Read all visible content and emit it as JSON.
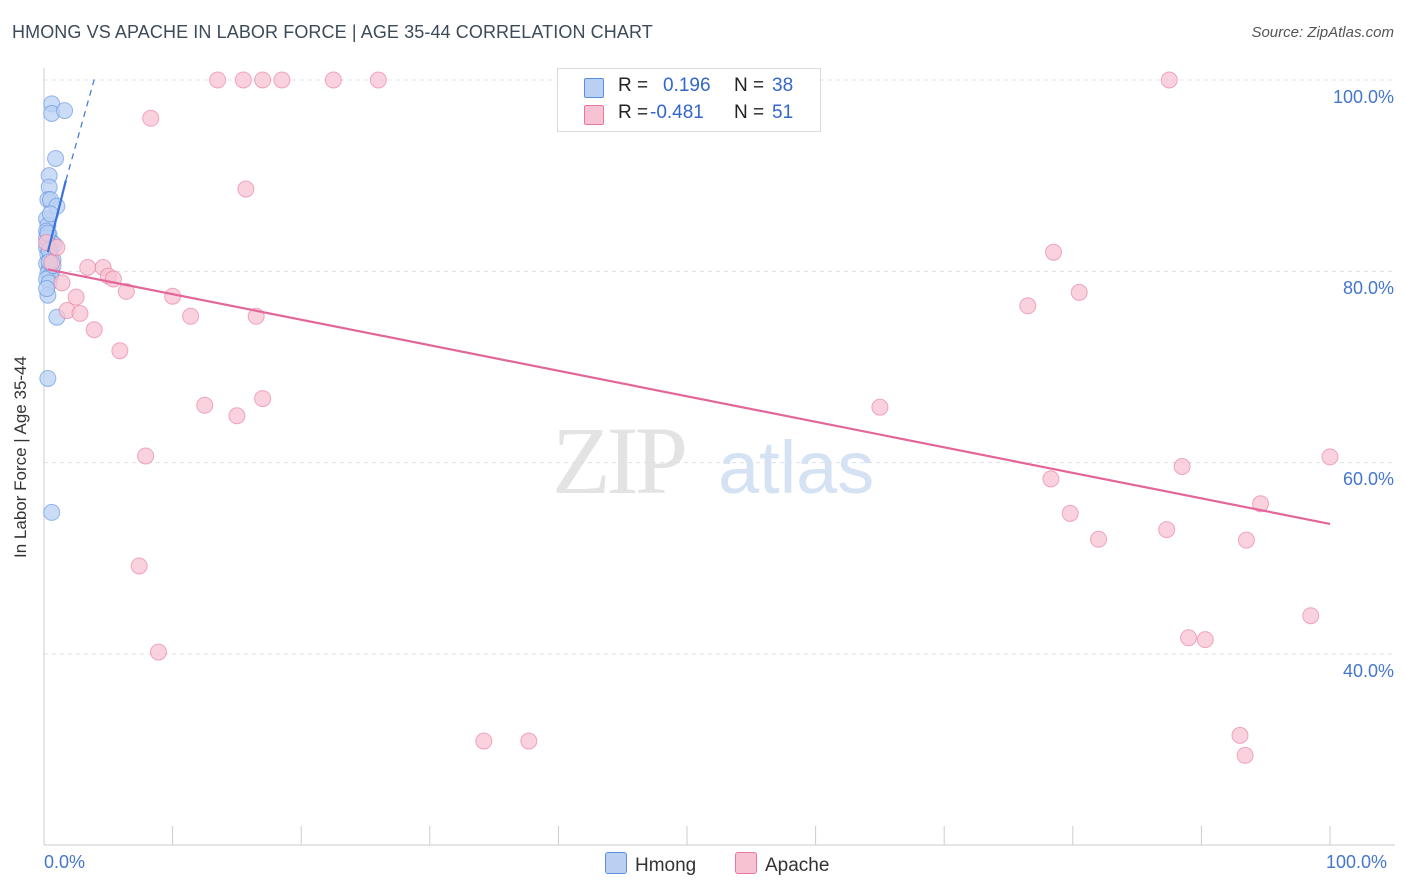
{
  "title": "HMONG VS APACHE IN LABOR FORCE | AGE 35-44 CORRELATION CHART",
  "source": "Source: ZipAtlas.com",
  "watermark": {
    "zip": "ZIP",
    "atlas": "atlas"
  },
  "colors": {
    "hmong": "#5b8fe0",
    "hmong_fill": "#b9d0f3",
    "apache": "#e8769d",
    "apache_fill": "#f7c3d3",
    "axis_text": "#4477cc"
  },
  "legend": {
    "hmong": {
      "r_label": "R =",
      "r_value": "0.196",
      "n_label": "N =",
      "n_value": "38"
    },
    "apache": {
      "r_label": "R =",
      "r_value": "-0.481",
      "n_label": "N =",
      "n_value": "51"
    }
  },
  "bottom_legend": {
    "hmong": "Hmong",
    "apache": "Apache"
  },
  "chart_data": {
    "type": "scatter",
    "title": "HMONG VS APACHE IN LABOR FORCE | AGE 35-44 CORRELATION CHART",
    "xlabel": "",
    "ylabel": "In Labor Force | Age 35-44",
    "x_tick_labels": [
      "0.0%",
      "100.0%"
    ],
    "y_tick_labels": [
      "40.0%",
      "60.0%",
      "80.0%",
      "100.0%"
    ],
    "xlim": [
      0,
      100
    ],
    "ylim": [
      20,
      102
    ],
    "y_gridlines": [
      40,
      60,
      80,
      100
    ],
    "legend_position": "top-center",
    "series": [
      {
        "name": "Hmong",
        "points": [
          [
            0.6,
            97.5
          ],
          [
            0.6,
            96.5
          ],
          [
            1.6,
            96.8
          ],
          [
            0.9,
            91.8
          ],
          [
            0.4,
            90.0
          ],
          [
            0.4,
            88.8
          ],
          [
            0.3,
            87.5
          ],
          [
            0.5,
            87.5
          ],
          [
            1.0,
            86.8
          ],
          [
            0.2,
            85.5
          ],
          [
            0.3,
            84.8
          ],
          [
            0.2,
            84.2
          ],
          [
            0.4,
            83.8
          ],
          [
            0.3,
            83.2
          ],
          [
            0.6,
            83.0
          ],
          [
            0.8,
            82.8
          ],
          [
            0.2,
            82.5
          ],
          [
            0.3,
            81.8
          ],
          [
            0.5,
            81.5
          ],
          [
            0.7,
            81.2
          ],
          [
            0.2,
            80.8
          ],
          [
            0.4,
            80.2
          ],
          [
            0.6,
            80.0
          ],
          [
            0.3,
            79.8
          ],
          [
            0.5,
            79.5
          ],
          [
            0.2,
            79.2
          ],
          [
            0.4,
            78.8
          ],
          [
            0.3,
            77.5
          ],
          [
            1.0,
            75.2
          ],
          [
            0.3,
            68.8
          ],
          [
            0.6,
            54.8
          ],
          [
            0.2,
            83.5
          ],
          [
            0.4,
            82.2
          ],
          [
            0.7,
            80.6
          ],
          [
            0.3,
            84.0
          ],
          [
            0.5,
            86.0
          ],
          [
            0.2,
            78.2
          ],
          [
            0.4,
            81.0
          ]
        ],
        "trend": {
          "x": [
            0.3,
            1.7
          ],
          "y": [
            82.0,
            89.5
          ]
        },
        "trend_extension": {
          "x": [
            1.7,
            4.0
          ],
          "y": [
            89.5,
            100.5
          ]
        }
      },
      {
        "name": "Apache",
        "points": [
          [
            13.5,
            100
          ],
          [
            15.5,
            100
          ],
          [
            17.0,
            100
          ],
          [
            18.5,
            100
          ],
          [
            22.5,
            100
          ],
          [
            26.0,
            100
          ],
          [
            87.5,
            100
          ],
          [
            8.3,
            96.0
          ],
          [
            15.7,
            88.6
          ],
          [
            78.5,
            82.0
          ],
          [
            0.6,
            80.9
          ],
          [
            3.4,
            80.4
          ],
          [
            4.6,
            80.4
          ],
          [
            5.0,
            79.5
          ],
          [
            5.4,
            79.2
          ],
          [
            1.4,
            78.8
          ],
          [
            6.4,
            77.9
          ],
          [
            2.5,
            77.3
          ],
          [
            10.0,
            77.4
          ],
          [
            76.5,
            76.4
          ],
          [
            80.5,
            77.8
          ],
          [
            1.8,
            75.9
          ],
          [
            2.8,
            75.6
          ],
          [
            11.4,
            75.3
          ],
          [
            16.5,
            75.3
          ],
          [
            3.9,
            73.9
          ],
          [
            5.9,
            71.7
          ],
          [
            12.5,
            66.0
          ],
          [
            17.0,
            66.7
          ],
          [
            15.0,
            64.9
          ],
          [
            65.0,
            65.8
          ],
          [
            7.9,
            60.7
          ],
          [
            88.5,
            59.6
          ],
          [
            100.0,
            60.6
          ],
          [
            78.3,
            58.3
          ],
          [
            94.6,
            55.7
          ],
          [
            79.8,
            54.7
          ],
          [
            82.0,
            52.0
          ],
          [
            87.3,
            53.0
          ],
          [
            93.5,
            51.9
          ],
          [
            7.4,
            49.2
          ],
          [
            98.5,
            44.0
          ],
          [
            89.0,
            41.7
          ],
          [
            90.3,
            41.5
          ],
          [
            8.9,
            40.2
          ],
          [
            34.2,
            30.9
          ],
          [
            37.7,
            30.9
          ],
          [
            93.0,
            31.5
          ],
          [
            93.4,
            29.4
          ],
          [
            0.2,
            83.0
          ],
          [
            1.0,
            82.5
          ]
        ],
        "trend": {
          "x": [
            0.3,
            100.0
          ],
          "y": [
            80.2,
            53.6
          ]
        }
      }
    ]
  }
}
